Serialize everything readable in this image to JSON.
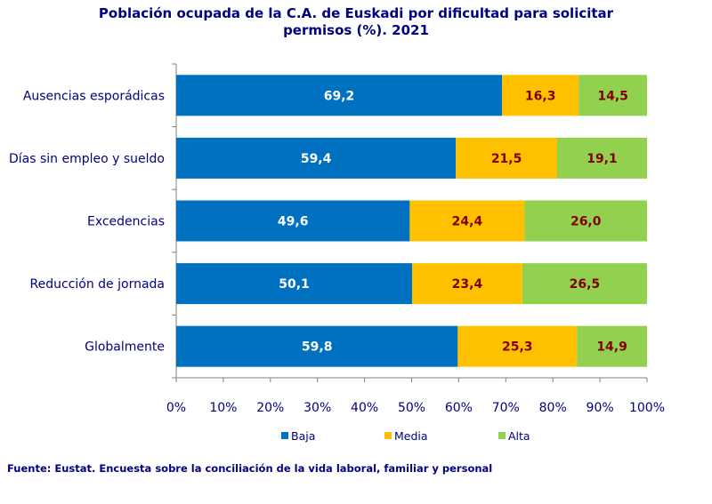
{
  "source": "Fuente: Eustat. Encuesta sobre la conciliación de la vida laboral, familiar y personal",
  "chart_data": {
    "type": "bar",
    "orientation": "horizontal",
    "stacked": "percent",
    "title_lines": [
      "Población ocupada de la C.A. de Euskadi por dificultad para solicitar",
      "permisos (%). 2021"
    ],
    "categories": [
      "Ausencias esporádicas",
      "Días sin empleo y sueldo",
      "Excedencias",
      "Reducción de jornada",
      "Globalmente"
    ],
    "series": [
      {
        "name": "Baja",
        "color": "#0070C0",
        "label_color": "#FFFFFF",
        "values": [
          69.2,
          59.4,
          49.6,
          50.1,
          59.8
        ],
        "labels": [
          "69,2",
          "59,4",
          "49,6",
          "50,1",
          "59,8"
        ]
      },
      {
        "name": "Media",
        "color": "#FFC000",
        "label_color": "#800000",
        "values": [
          16.3,
          21.5,
          24.4,
          23.4,
          25.3
        ],
        "labels": [
          "16,3",
          "21,5",
          "24,4",
          "23,4",
          "25,3"
        ]
      },
      {
        "name": "Alta",
        "color": "#92D050",
        "label_color": "#800000",
        "values": [
          14.5,
          19.1,
          26.0,
          26.5,
          14.9
        ],
        "labels": [
          "14,5",
          "19,1",
          "26,0",
          "26,5",
          "14,9"
        ]
      }
    ],
    "xlim": [
      0,
      100
    ],
    "xticks": [
      "0%",
      "10%",
      "20%",
      "30%",
      "40%",
      "50%",
      "60%",
      "70%",
      "80%",
      "90%",
      "100%"
    ],
    "grid": false,
    "legend_position": "bottom",
    "axis_text_color": "#000080"
  }
}
